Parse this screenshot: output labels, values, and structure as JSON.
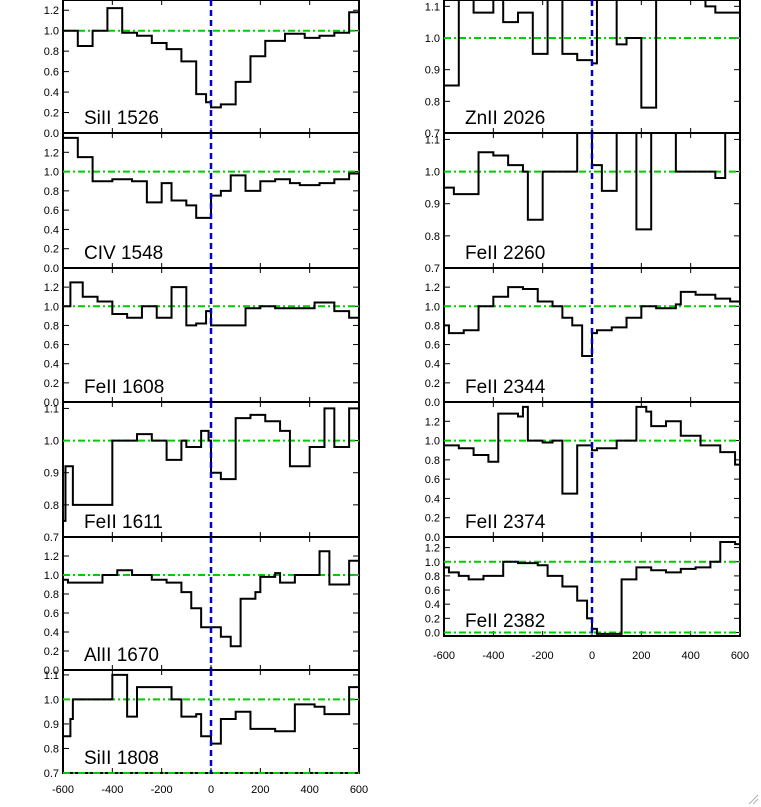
{
  "chart_data": {
    "type": "line",
    "style": {
      "spectrum_color": "#000000",
      "velocity_zero_color": "#0000cc",
      "continuum_color": "#00cc00"
    },
    "x_ticks": [
      "-600",
      "-400",
      "-200",
      "0",
      "200",
      "400",
      "600"
    ],
    "xlim": [
      -600,
      600
    ],
    "panels": [
      {
        "id": "siII-1526",
        "label": "SiII 1526",
        "ylim": [
          0,
          1.3
        ],
        "y_ticks": [
          "0.0",
          "0.2",
          "0.4",
          "0.6",
          "0.8",
          "1.0",
          "1.2"
        ],
        "continuum": [
          0.0,
          1.0
        ],
        "steps": [
          [
            -600,
            1.0
          ],
          [
            -540,
            0.85
          ],
          [
            -480,
            1.0
          ],
          [
            -420,
            1.22
          ],
          [
            -360,
            0.98
          ],
          [
            -300,
            0.95
          ],
          [
            -240,
            0.88
          ],
          [
            -180,
            0.82
          ],
          [
            -120,
            0.7
          ],
          [
            -60,
            0.38
          ],
          [
            -20,
            0.3
          ],
          [
            0,
            0.25
          ],
          [
            40,
            0.28
          ],
          [
            100,
            0.5
          ],
          [
            160,
            0.75
          ],
          [
            220,
            0.9
          ],
          [
            300,
            0.97
          ],
          [
            380,
            0.93
          ],
          [
            440,
            0.95
          ],
          [
            500,
            0.98
          ],
          [
            560,
            1.18
          ],
          [
            600,
            1.18
          ]
        ]
      },
      {
        "id": "civ-1548",
        "label": "CIV 1548",
        "ylim": [
          0,
          1.4
        ],
        "y_ticks": [
          "0.0",
          "0.2",
          "0.4",
          "0.6",
          "0.8",
          "1.0",
          "1.2"
        ],
        "continuum": [
          0.0,
          1.0
        ],
        "steps": [
          [
            -600,
            1.35
          ],
          [
            -540,
            1.15
          ],
          [
            -480,
            0.9
          ],
          [
            -400,
            0.92
          ],
          [
            -320,
            0.9
          ],
          [
            -260,
            0.68
          ],
          [
            -200,
            0.88
          ],
          [
            -160,
            0.7
          ],
          [
            -100,
            0.65
          ],
          [
            -60,
            0.52
          ],
          [
            0,
            0.75
          ],
          [
            40,
            0.8
          ],
          [
            80,
            0.96
          ],
          [
            140,
            0.8
          ],
          [
            200,
            0.9
          ],
          [
            260,
            0.92
          ],
          [
            320,
            0.88
          ],
          [
            360,
            0.86
          ],
          [
            440,
            0.88
          ],
          [
            500,
            0.92
          ],
          [
            560,
            0.98
          ],
          [
            600,
            0.98
          ]
        ]
      },
      {
        "id": "feii-1608",
        "label": "FeII 1608",
        "ylim": [
          0,
          1.4
        ],
        "y_ticks": [
          "0.0",
          "0.2",
          "0.4",
          "0.6",
          "0.8",
          "1.0",
          "1.2"
        ],
        "continuum": [
          0.0,
          1.0
        ],
        "steps": [
          [
            -600,
            1.0
          ],
          [
            -570,
            1.25
          ],
          [
            -520,
            1.1
          ],
          [
            -460,
            1.05
          ],
          [
            -400,
            0.92
          ],
          [
            -340,
            0.88
          ],
          [
            -280,
            1.0
          ],
          [
            -220,
            0.88
          ],
          [
            -160,
            1.2
          ],
          [
            -140,
            1.2
          ],
          [
            -100,
            0.8
          ],
          [
            -60,
            0.82
          ],
          [
            -20,
            0.95
          ],
          [
            0,
            0.8
          ],
          [
            40,
            0.8
          ],
          [
            140,
            0.98
          ],
          [
            200,
            1.0
          ],
          [
            260,
            0.98
          ],
          [
            300,
            0.98
          ],
          [
            420,
            1.04
          ],
          [
            500,
            0.95
          ],
          [
            560,
            0.88
          ],
          [
            600,
            0.88
          ]
        ]
      },
      {
        "id": "feii-1611",
        "label": "FeII 1611",
        "ylim": [
          0.7,
          1.12
        ],
        "y_ticks": [
          "0.7",
          "0.8",
          "0.9",
          "1.0",
          "1.1"
        ],
        "continuum": [
          0.7,
          1.0
        ],
        "steps": [
          [
            -600,
            0.75
          ],
          [
            -590,
            0.92
          ],
          [
            -560,
            0.8
          ],
          [
            -500,
            0.8
          ],
          [
            -400,
            1.0
          ],
          [
            -340,
            1.0
          ],
          [
            -300,
            1.02
          ],
          [
            -240,
            1.0
          ],
          [
            -180,
            0.94
          ],
          [
            -120,
            1.0
          ],
          [
            -100,
            0.98
          ],
          [
            -40,
            1.03
          ],
          [
            -10,
            1.0
          ],
          [
            0,
            0.9
          ],
          [
            40,
            0.88
          ],
          [
            100,
            1.07
          ],
          [
            160,
            1.08
          ],
          [
            220,
            1.06
          ],
          [
            280,
            1.03
          ],
          [
            320,
            0.92
          ],
          [
            400,
            0.98
          ],
          [
            460,
            1.1
          ],
          [
            500,
            0.98
          ],
          [
            560,
            1.1
          ],
          [
            600,
            1.1
          ]
        ]
      },
      {
        "id": "alii-1670",
        "label": "AlII 1670",
        "ylim": [
          0,
          1.4
        ],
        "y_ticks": [
          "0.0",
          "0.2",
          "0.4",
          "0.6",
          "0.8",
          "1.0",
          "1.2"
        ],
        "continuum": [
          0.0,
          1.0
        ],
        "steps": [
          [
            -600,
            0.95
          ],
          [
            -580,
            0.92
          ],
          [
            -440,
            1.0
          ],
          [
            -380,
            1.05
          ],
          [
            -320,
            1.0
          ],
          [
            -240,
            0.95
          ],
          [
            -180,
            0.92
          ],
          [
            -120,
            0.82
          ],
          [
            -80,
            0.65
          ],
          [
            -40,
            0.45
          ],
          [
            40,
            0.35
          ],
          [
            80,
            0.25
          ],
          [
            120,
            0.75
          ],
          [
            180,
            0.82
          ],
          [
            200,
            0.98
          ],
          [
            260,
            1.02
          ],
          [
            280,
            0.92
          ],
          [
            340,
            1.0
          ],
          [
            440,
            1.25
          ],
          [
            480,
            0.9
          ],
          [
            560,
            1.15
          ],
          [
            600,
            1.15
          ]
        ]
      },
      {
        "id": "siII-1808",
        "label": "SiII 1808",
        "ylim": [
          0.7,
          1.12
        ],
        "y_ticks": [
          "0.7",
          "0.8",
          "0.9",
          "1.0",
          "1.1"
        ],
        "continuum": [
          0.7,
          1.0
        ],
        "steps": [
          [
            -600,
            0.85
          ],
          [
            -570,
            0.92
          ],
          [
            -560,
            1.0
          ],
          [
            -420,
            1.0
          ],
          [
            -400,
            1.1
          ],
          [
            -340,
            0.93
          ],
          [
            -300,
            1.05
          ],
          [
            -220,
            1.05
          ],
          [
            -160,
            1.0
          ],
          [
            -120,
            0.93
          ],
          [
            -60,
            0.94
          ],
          [
            -40,
            0.85
          ],
          [
            0,
            0.82
          ],
          [
            40,
            0.92
          ],
          [
            100,
            0.95
          ],
          [
            160,
            0.88
          ],
          [
            260,
            0.87
          ],
          [
            340,
            0.98
          ],
          [
            400,
            0.98
          ],
          [
            420,
            0.97
          ],
          [
            460,
            0.94
          ],
          [
            560,
            1.05
          ],
          [
            600,
            1.08
          ]
        ]
      },
      {
        "id": "znii-2026",
        "label": "ZnII 2026",
        "ylim": [
          0.7,
          1.12
        ],
        "y_ticks": [
          "0.7",
          "0.8",
          "0.9",
          "1.0",
          "1.1"
        ],
        "continuum": [
          0.7,
          1.0
        ],
        "steps": [
          [
            -600,
            0.85
          ],
          [
            -540,
            1.15
          ],
          [
            -480,
            1.08
          ],
          [
            -400,
            1.12
          ],
          [
            -360,
            1.05
          ],
          [
            -300,
            1.08
          ],
          [
            -240,
            0.95
          ],
          [
            -180,
            1.15
          ],
          [
            -120,
            0.95
          ],
          [
            -60,
            0.93
          ],
          [
            -20,
            0.93
          ],
          [
            0,
            0.92
          ],
          [
            20,
            1.12
          ],
          [
            100,
            0.98
          ],
          [
            140,
            1.0
          ],
          [
            200,
            0.78
          ],
          [
            260,
            1.12
          ],
          [
            300,
            1.12
          ],
          [
            360,
            1.12
          ],
          [
            460,
            1.1
          ],
          [
            500,
            1.08
          ],
          [
            580,
            1.08
          ],
          [
            600,
            1.15
          ]
        ]
      },
      {
        "id": "feii-2260",
        "label": "FeII 2260",
        "ylim": [
          0.7,
          1.12
        ],
        "y_ticks": [
          "0.7",
          "0.8",
          "0.9",
          "1.0",
          "1.1"
        ],
        "continuum": [
          0.7,
          1.0
        ],
        "steps": [
          [
            -600,
            0.95
          ],
          [
            -560,
            0.93
          ],
          [
            -520,
            0.93
          ],
          [
            -460,
            1.06
          ],
          [
            -400,
            1.05
          ],
          [
            -340,
            1.02
          ],
          [
            -280,
            1.0
          ],
          [
            -260,
            0.85
          ],
          [
            -200,
            1.0
          ],
          [
            -120,
            1.0
          ],
          [
            -100,
            1.0
          ],
          [
            -60,
            1.12
          ],
          [
            0,
            1.02
          ],
          [
            40,
            0.94
          ],
          [
            100,
            1.12
          ],
          [
            160,
            1.12
          ],
          [
            180,
            0.82
          ],
          [
            240,
            1.12
          ],
          [
            300,
            1.12
          ],
          [
            340,
            1.0
          ],
          [
            440,
            1.0
          ],
          [
            500,
            0.98
          ],
          [
            540,
            1.12
          ],
          [
            600,
            1.12
          ]
        ]
      },
      {
        "id": "feii-2344",
        "label": "FeII 2344",
        "ylim": [
          0,
          1.4
        ],
        "y_ticks": [
          "0.0",
          "0.2",
          "0.4",
          "0.6",
          "0.8",
          "1.0",
          "1.2"
        ],
        "continuum": [
          0.0,
          1.0
        ],
        "steps": [
          [
            -600,
            0.8
          ],
          [
            -580,
            0.72
          ],
          [
            -520,
            0.75
          ],
          [
            -460,
            1.0
          ],
          [
            -400,
            1.1
          ],
          [
            -340,
            1.2
          ],
          [
            -280,
            1.18
          ],
          [
            -220,
            1.05
          ],
          [
            -160,
            1.0
          ],
          [
            -120,
            0.88
          ],
          [
            -80,
            0.8
          ],
          [
            -40,
            0.48
          ],
          [
            0,
            0.72
          ],
          [
            20,
            0.75
          ],
          [
            80,
            0.78
          ],
          [
            140,
            0.88
          ],
          [
            200,
            1.0
          ],
          [
            260,
            0.98
          ],
          [
            340,
            1.02
          ],
          [
            360,
            1.15
          ],
          [
            420,
            1.12
          ],
          [
            500,
            1.08
          ],
          [
            560,
            1.05
          ],
          [
            600,
            1.05
          ]
        ]
      },
      {
        "id": "feii-2374",
        "label": "FeII 2374",
        "ylim": [
          0,
          1.4
        ],
        "y_ticks": [
          "0.0",
          "0.2",
          "0.4",
          "0.6",
          "0.8",
          "1.0",
          "1.2"
        ],
        "continuum": [
          0.0,
          1.0
        ],
        "steps": [
          [
            -600,
            0.95
          ],
          [
            -540,
            0.92
          ],
          [
            -480,
            0.85
          ],
          [
            -420,
            0.78
          ],
          [
            -380,
            1.28
          ],
          [
            -300,
            1.25
          ],
          [
            -280,
            1.35
          ],
          [
            -260,
            1.0
          ],
          [
            -200,
            0.98
          ],
          [
            -160,
            1.0
          ],
          [
            -120,
            0.45
          ],
          [
            -60,
            0.95
          ],
          [
            0,
            0.9
          ],
          [
            20,
            0.92
          ],
          [
            100,
            1.0
          ],
          [
            180,
            1.35
          ],
          [
            220,
            1.3
          ],
          [
            240,
            1.15
          ],
          [
            300,
            1.2
          ],
          [
            360,
            1.05
          ],
          [
            440,
            0.95
          ],
          [
            520,
            0.88
          ],
          [
            580,
            0.75
          ],
          [
            600,
            0.75
          ]
        ]
      },
      {
        "id": "feii-2382",
        "label": "FeII 2382",
        "ylim": [
          -0.05,
          1.35
        ],
        "y_ticks": [
          "0.0",
          "0.2",
          "0.4",
          "0.6",
          "0.8",
          "1.0",
          "1.2"
        ],
        "continuum": [
          0.0,
          1.0
        ],
        "steps": [
          [
            -600,
            0.92
          ],
          [
            -580,
            0.85
          ],
          [
            -540,
            0.8
          ],
          [
            -500,
            0.75
          ],
          [
            -440,
            0.8
          ],
          [
            -360,
            1.0
          ],
          [
            -300,
            0.98
          ],
          [
            -220,
            0.95
          ],
          [
            -180,
            0.8
          ],
          [
            -120,
            0.65
          ],
          [
            -60,
            0.45
          ],
          [
            -20,
            0.2
          ],
          [
            0,
            0.05
          ],
          [
            20,
            -0.02
          ],
          [
            80,
            -0.02
          ],
          [
            120,
            0.75
          ],
          [
            180,
            0.92
          ],
          [
            240,
            0.88
          ],
          [
            300,
            0.85
          ],
          [
            360,
            0.9
          ],
          [
            420,
            0.92
          ],
          [
            480,
            1.0
          ],
          [
            520,
            1.28
          ],
          [
            580,
            1.25
          ],
          [
            600,
            1.1
          ]
        ]
      }
    ]
  }
}
